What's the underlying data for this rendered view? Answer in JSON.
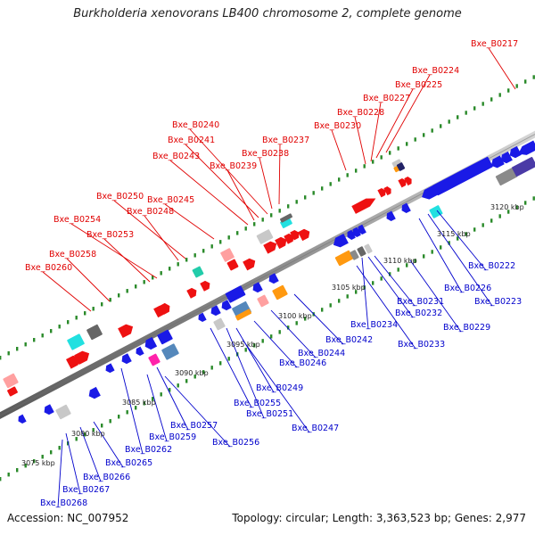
{
  "title": "Burkholderia xenovorans LB400 chromosome 2, complete genome",
  "footer": {
    "accession": "Accession: NC_007952",
    "topology": "Topology: circular; Length: 3,363,523 bp; Genes: 2,977"
  },
  "colors": {
    "label_upper": "#e00000",
    "label_lower": "#0000cc",
    "backbone": "#8c8c8c",
    "tick_dot": "#2a8a2a"
  },
  "ruler": [
    {
      "kbp": 3075,
      "label": "3075 kbp"
    },
    {
      "kbp": 3080,
      "label": "3080 kbp"
    },
    {
      "kbp": 3085,
      "label": "3085 kbp"
    },
    {
      "kbp": 3090,
      "label": "3090 kbp"
    },
    {
      "kbp": 3095,
      "label": "3095 kbp"
    },
    {
      "kbp": 3100,
      "label": "3100 kbp"
    },
    {
      "kbp": 3105,
      "label": "3105 kbp"
    },
    {
      "kbp": 3110,
      "label": "3110 kbp"
    },
    {
      "kbp": 3115,
      "label": "3115 kbp"
    },
    {
      "kbp": 3120,
      "label": "3120 kbp"
    }
  ],
  "genes_upper": [
    "Bxe_B0217",
    "Bxe_B0224",
    "Bxe_B0225",
    "Bxe_B0227",
    "Bxe_B0228",
    "Bxe_B0230",
    "Bxe_B0240",
    "Bxe_B0241",
    "Bxe_B0237",
    "Bxe_B0238",
    "Bxe_B0243",
    "Bxe_B0239",
    "Bxe_B0250",
    "Bxe_B0245",
    "Bxe_B0248",
    "Bxe_B0254",
    "Bxe_B0253",
    "Bxe_B0258",
    "Bxe_B0260"
  ],
  "genes_lower": [
    "Bxe_B0222",
    "Bxe_B0226",
    "Bxe_B0223",
    "Bxe_B0231",
    "Bxe_B0232",
    "Bxe_B0229",
    "Bxe_B0234",
    "Bxe_B0242",
    "Bxe_B0233",
    "Bxe_B0244",
    "Bxe_B0246",
    "Bxe_B0249",
    "Bxe_B0255",
    "Bxe_B0251",
    "Bxe_B0247",
    "Bxe_B0257",
    "Bxe_B0259",
    "Bxe_B0256",
    "Bxe_B0262",
    "Bxe_B0265",
    "Bxe_B0266",
    "Bxe_B0267",
    "Bxe_B0268"
  ]
}
